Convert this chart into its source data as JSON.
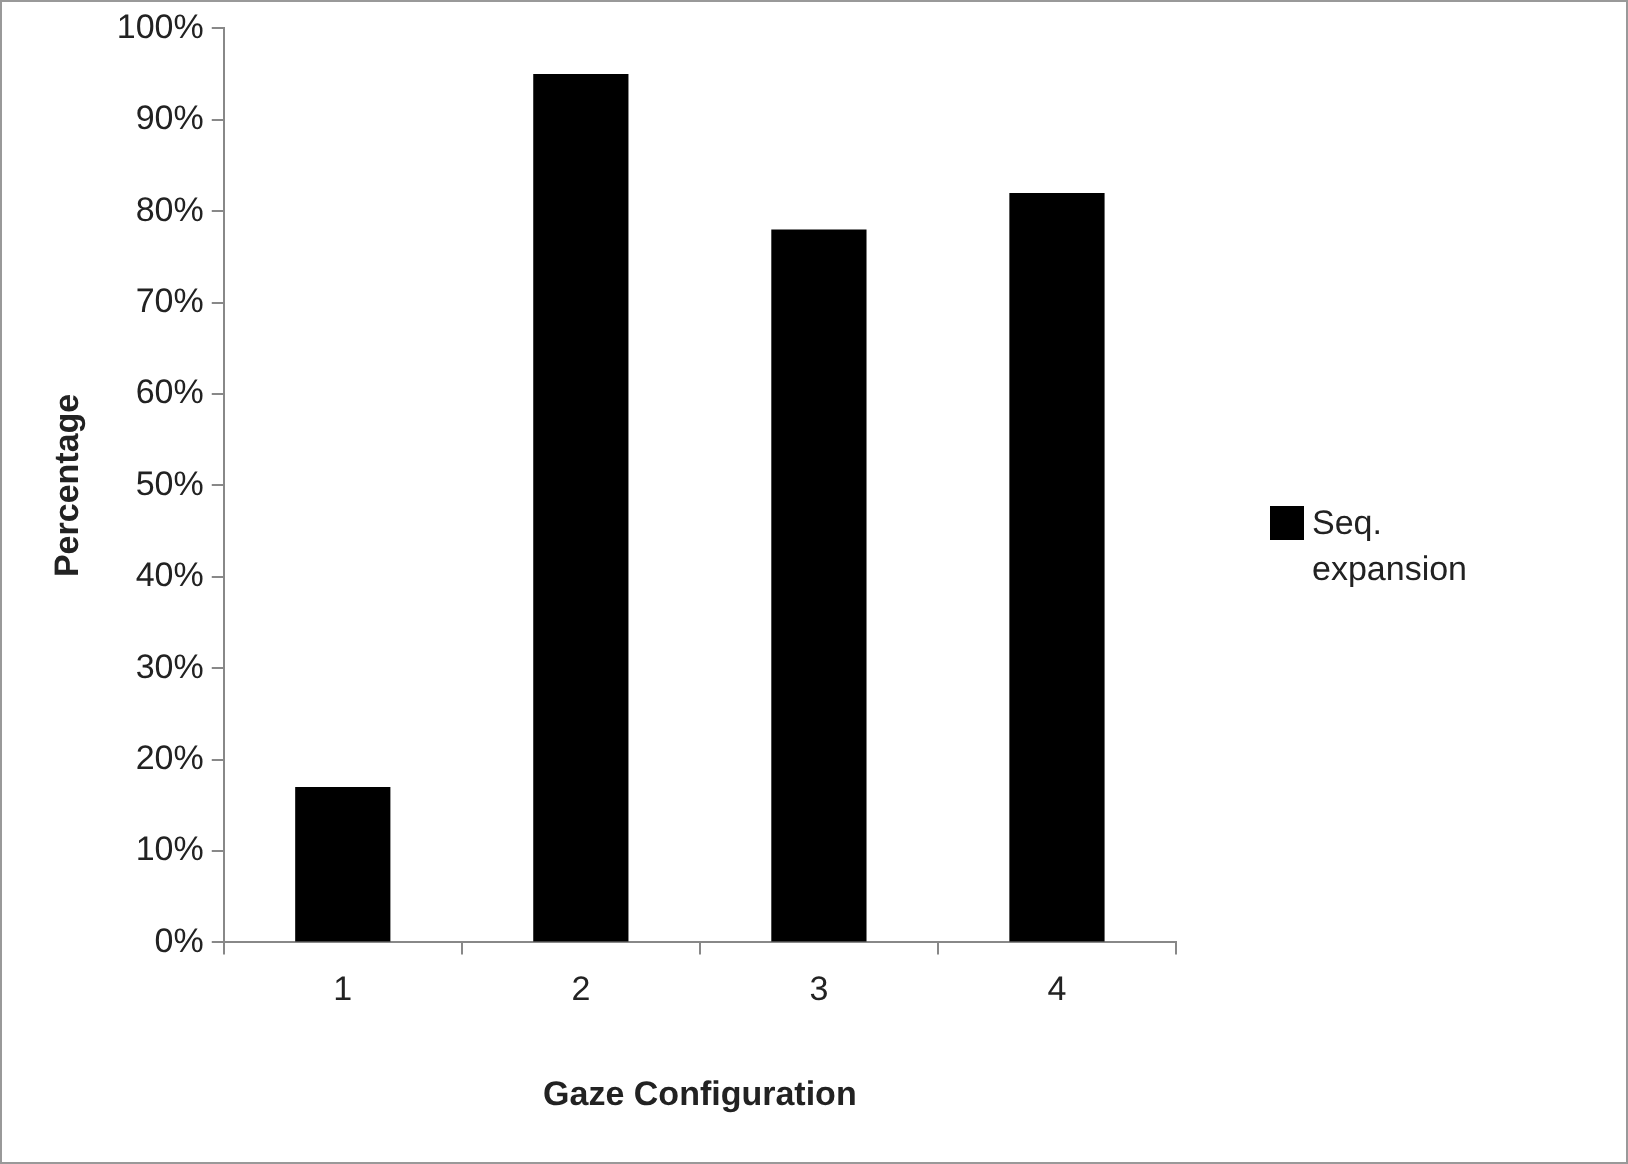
{
  "chart_data": {
    "type": "bar",
    "xlabel": "Gaze Configuration",
    "ylabel": "Percentage",
    "categories": [
      "1",
      "2",
      "3",
      "4"
    ],
    "series": [
      {
        "name": "Seq. expansion",
        "color": "#000000",
        "values": [
          17,
          95,
          78,
          82
        ]
      }
    ],
    "ylim": [
      0,
      100
    ],
    "yticks": [
      {
        "value": 0,
        "label": "0%"
      },
      {
        "value": 10,
        "label": "10%"
      },
      {
        "value": 20,
        "label": "20%"
      },
      {
        "value": 30,
        "label": "30%"
      },
      {
        "value": 40,
        "label": "40%"
      },
      {
        "value": 50,
        "label": "50%"
      },
      {
        "value": 60,
        "label": "60%"
      },
      {
        "value": 70,
        "label": "70%"
      },
      {
        "value": 80,
        "label": "80%"
      },
      {
        "value": 90,
        "label": "90%"
      },
      {
        "value": 100,
        "label": "100%"
      }
    ],
    "grid": false,
    "legend": "right"
  }
}
